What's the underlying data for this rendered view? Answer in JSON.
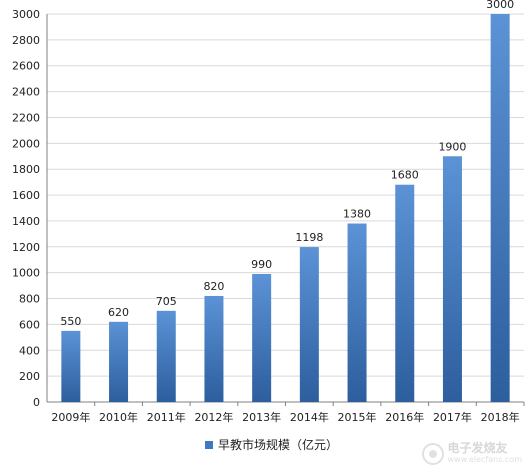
{
  "chart_data": {
    "type": "bar",
    "categories": [
      "2009年",
      "2010年",
      "2011年",
      "2012年",
      "2013年",
      "2014年",
      "2015年",
      "2016年",
      "2017年",
      "2018年"
    ],
    "series": [
      {
        "name": "早教市场规模（亿元）",
        "values": [
          550,
          620,
          705,
          820,
          990,
          1198,
          1380,
          1680,
          1900,
          3000
        ]
      }
    ],
    "data_labels": [
      "550",
      "620",
      "705",
      "820",
      "990",
      "1198",
      "1380",
      "1680",
      "1900",
      "3000"
    ],
    "ylim": [
      0,
      3000
    ],
    "yticks": [
      0,
      200,
      400,
      600,
      800,
      1000,
      1200,
      1400,
      1600,
      1800,
      2000,
      2200,
      2400,
      2600,
      2800,
      3000
    ],
    "grid": true,
    "legend_position": "bottom",
    "title": "",
    "xlabel": "",
    "ylabel": ""
  },
  "colors": {
    "bar_top": "#5b93d6",
    "bar_bottom": "#2d5e9e",
    "grid": "#d9d9d9",
    "axis": "#808080",
    "legend_swatch": "#3f78c0"
  },
  "legend": {
    "label": "早教市场规模（亿元）"
  },
  "watermark": {
    "main": "电子发烧友",
    "sub": "www.elecfans.com",
    "icon": "logo-icon"
  }
}
